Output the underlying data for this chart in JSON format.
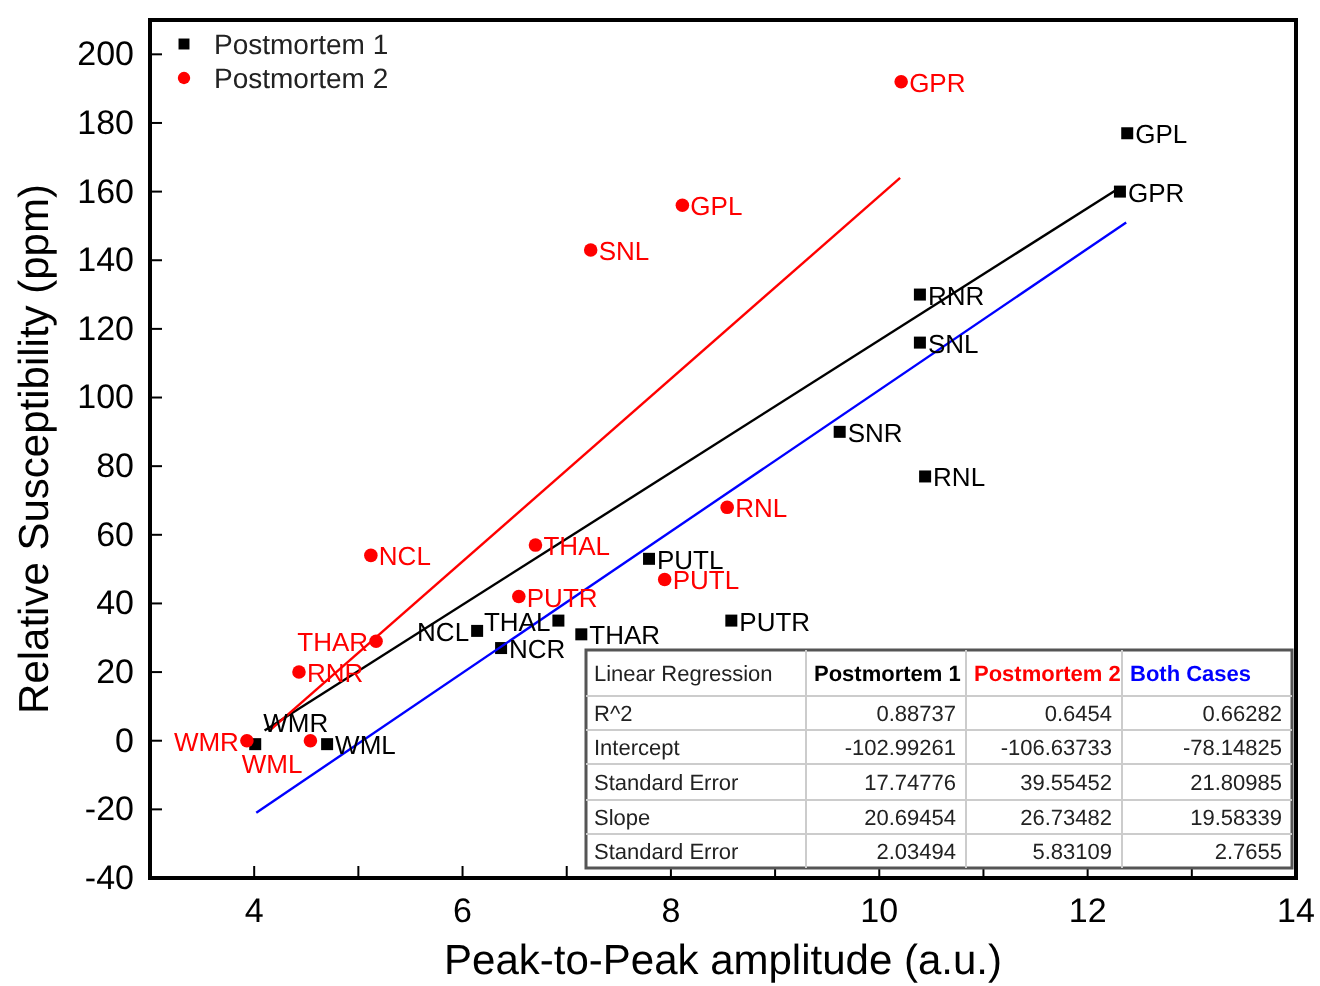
{
  "chart_data": {
    "type": "scatter",
    "xlabel": "Peak-to-Peak amplitude (a.u.)",
    "ylabel": "Relative Susceptibility (ppm)",
    "xlim": [
      3,
      14
    ],
    "ylim": [
      -40,
      210
    ],
    "xticks": [
      4,
      {
        "value": 5,
        "label": null
      },
      6,
      {
        "value": 7,
        "label": null
      },
      8,
      {
        "value": 9,
        "label": null
      },
      10,
      {
        "value": 11,
        "label": null
      },
      12,
      {
        "value": 13,
        "label": null
      },
      14
    ],
    "yticks": [
      -40,
      -20,
      0,
      20,
      40,
      60,
      80,
      100,
      120,
      140,
      160,
      180,
      200
    ],
    "grid": false,
    "legend": "top left",
    "series": [
      {
        "name": "Postmortem 1",
        "type": "scatter",
        "marker": "square",
        "color": "#000000",
        "x": [
          12.38,
          12.31,
          10.39,
          10.39,
          9.62,
          10.44,
          7.79,
          8.58,
          6.92,
          7.14,
          6.14,
          6.37,
          4.01,
          4.7
        ],
        "values": [
          177,
          160,
          130,
          116,
          90,
          77,
          53,
          35,
          35,
          31,
          32,
          27,
          -1,
          -1
        ]
      },
      {
        "name": "Postmortem 2",
        "type": "scatter",
        "marker": "circle",
        "color": "#ff0000",
        "x": [
          10.21,
          8.11,
          7.23,
          8.54,
          5.12,
          6.7,
          6.54,
          7.94,
          5.17,
          4.43,
          3.93,
          4.54
        ],
        "values": [
          192,
          156,
          143,
          68,
          54,
          57,
          42,
          47,
          29,
          20,
          0,
          0
        ]
      },
      {
        "type": "line",
        "color": "#000000",
        "x": [
          4.1,
          12.3
        ],
        "values": [
          3,
          161
        ]
      },
      {
        "type": "line",
        "color": "#ff0000",
        "x": [
          4.15,
          10.2
        ],
        "values": [
          3,
          164
        ]
      },
      {
        "type": "line",
        "color": "#0000ff",
        "x": [
          4.02,
          12.37
        ],
        "values": [
          -21,
          151
        ]
      }
    ],
    "annotations": [
      {
        "text": "GPL",
        "x": 12.38,
        "y": 177
      },
      {
        "text": "GPR",
        "x": 12.31,
        "y": 160
      },
      {
        "text": "RNR",
        "x": 10.39,
        "y": 130
      },
      {
        "text": "SNL",
        "x": 10.39,
        "y": 116
      },
      {
        "text": "SNR",
        "x": 9.62,
        "y": 90
      },
      {
        "text": "RNL",
        "x": 10.44,
        "y": 77
      },
      {
        "text": "PUTL",
        "x": 7.79,
        "y": 53
      },
      {
        "text": "PUTR",
        "x": 8.58,
        "y": 35
      },
      {
        "text": "THAL",
        "x": 6.92,
        "y": 35
      },
      {
        "text": "THAR",
        "x": 7.14,
        "y": 31
      },
      {
        "text": "NCL",
        "x": 6.14,
        "y": 32
      },
      {
        "text": "NCR",
        "x": 6.37,
        "y": 27
      },
      {
        "text": "WMR",
        "x": 4.01,
        "y": -1
      },
      {
        "text": "WML",
        "x": 4.7,
        "y": -1
      },
      {
        "text": "GPR",
        "x": 10.21,
        "y": 192
      },
      {
        "text": "GPL",
        "x": 8.11,
        "y": 156
      },
      {
        "text": "SNL",
        "x": 7.23,
        "y": 143
      },
      {
        "text": "RNL",
        "x": 8.54,
        "y": 68
      },
      {
        "text": "NCL",
        "x": 5.12,
        "y": 54
      },
      {
        "text": "THAL",
        "x": 6.7,
        "y": 57
      },
      {
        "text": "PUTR",
        "x": 6.54,
        "y": 42
      },
      {
        "text": "PUTL",
        "x": 7.94,
        "y": 47
      },
      {
        "text": "THAR",
        "x": 5.17,
        "y": 29
      },
      {
        "text": "RNR",
        "x": 4.43,
        "y": 20
      },
      {
        "text": "WMR",
        "x": 3.93,
        "y": 0
      },
      {
        "text": "WML",
        "x": 4.54,
        "y": 0
      },
      "Linear Regression",
      "Postmortem 1",
      "Postmortem 2",
      "Both Cases",
      "R^2",
      "0.88737",
      "0.6454",
      "0.66282",
      "Intercept",
      "-102.99261",
      "-106.63733",
      "-78.14825",
      "Standard Error",
      "17.74776",
      "39.55452",
      "21.80985",
      "Slope",
      "20.69454",
      "26.73482",
      "19.58339",
      "Standard Error",
      "2.03494",
      "5.83109",
      "2.7655"
    ]
  }
}
